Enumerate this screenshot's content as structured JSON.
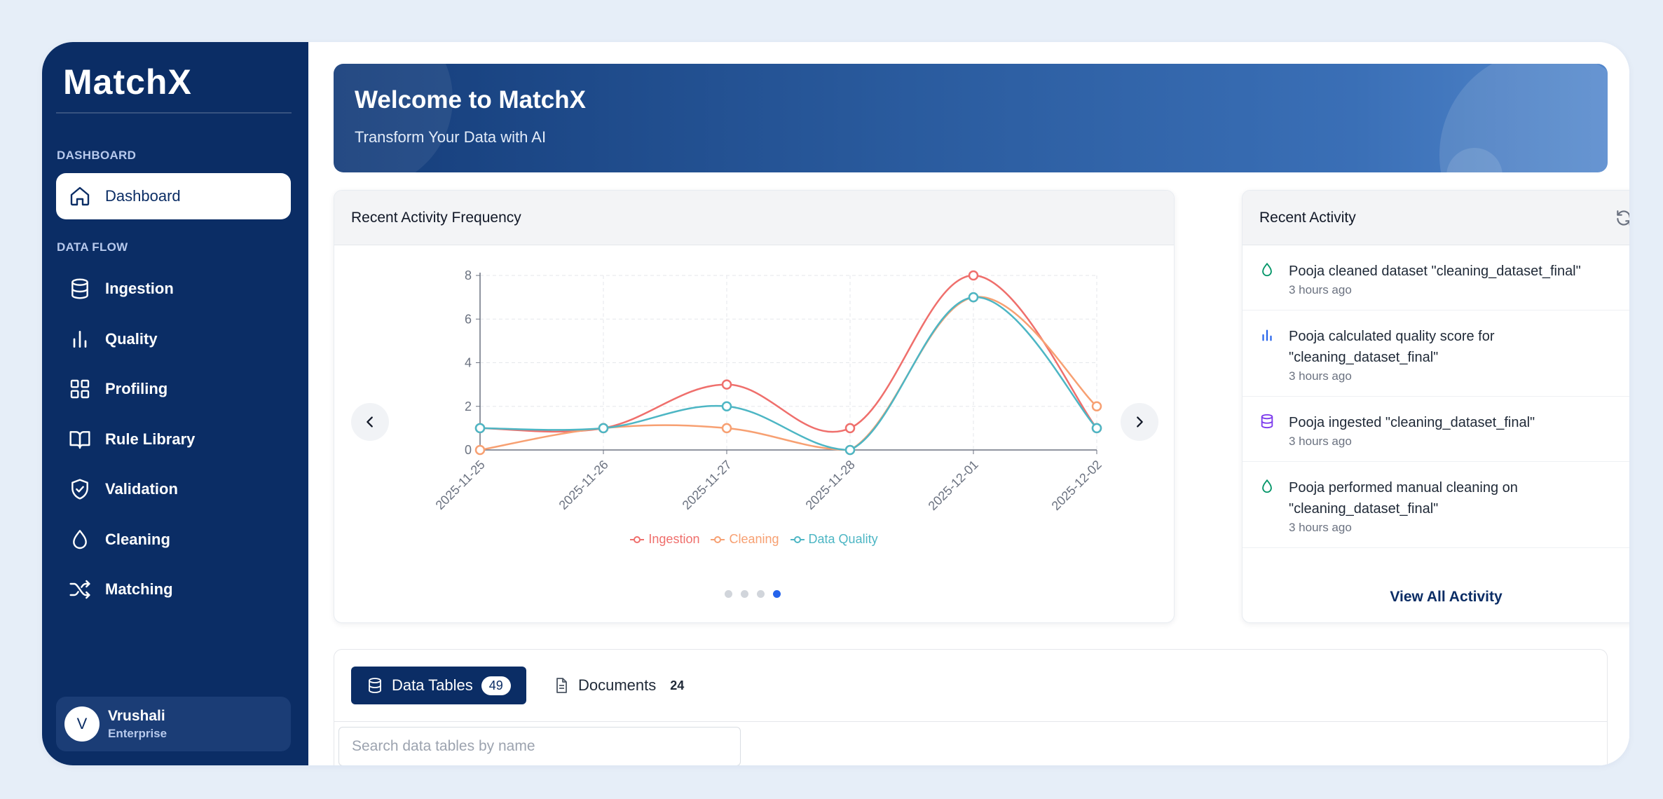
{
  "app": {
    "logo_text": "MatchX"
  },
  "sidebar": {
    "section_dashboard": "DASHBOARD",
    "section_dataflow": "DATA FLOW",
    "items": [
      {
        "label": "Dashboard",
        "icon": "home-icon"
      },
      {
        "label": "Ingestion",
        "icon": "database-icon"
      },
      {
        "label": "Quality",
        "icon": "bar-chart-icon"
      },
      {
        "label": "Profiling",
        "icon": "grid-icon"
      },
      {
        "label": "Rule Library",
        "icon": "book-icon"
      },
      {
        "label": "Validation",
        "icon": "shield-check-icon"
      },
      {
        "label": "Cleaning",
        "icon": "droplet-icon"
      },
      {
        "label": "Matching",
        "icon": "shuffle-icon"
      }
    ],
    "user": {
      "initial": "V",
      "name": "Vrushali",
      "plan": "Enterprise"
    }
  },
  "banner": {
    "title": "Welcome to MatchX",
    "subtitle": "Transform Your Data with AI"
  },
  "chart_card": {
    "title": "Recent Activity Frequency",
    "active_slide": 4,
    "slide_count": 4
  },
  "chart_data": {
    "type": "line",
    "categories": [
      "2025-11-25",
      "2025-11-26",
      "2025-11-27",
      "2025-11-28",
      "2025-12-01",
      "2025-12-02"
    ],
    "series": [
      {
        "name": "Ingestion",
        "color": "#ef6f6c",
        "values": [
          1,
          1,
          3,
          1,
          8,
          1
        ]
      },
      {
        "name": "Cleaning",
        "color": "#f7a072",
        "values": [
          0,
          1,
          1,
          0,
          7,
          2
        ]
      },
      {
        "name": "Data Quality",
        "color": "#4db6c4",
        "values": [
          1,
          1,
          2,
          0,
          7,
          1
        ]
      }
    ],
    "ylim": [
      0,
      8
    ],
    "yticks": [
      0,
      2,
      4,
      6,
      8
    ],
    "grid": true,
    "legend": "bottom"
  },
  "activity": {
    "title": "Recent Activity",
    "items": [
      {
        "icon": "droplet-icon",
        "color": "#059669",
        "text": "Pooja cleaned dataset \"cleaning_dataset_final\"",
        "time": "3 hours ago"
      },
      {
        "icon": "bar-chart-icon",
        "color": "#2563eb",
        "text": "Pooja calculated quality score for \"cleaning_dataset_final\"",
        "time": "3 hours ago"
      },
      {
        "icon": "database-icon",
        "color": "#7c3aed",
        "text": "Pooja ingested \"cleaning_dataset_final\"",
        "time": "3 hours ago"
      },
      {
        "icon": "droplet-icon",
        "color": "#059669",
        "text": "Pooja performed manual cleaning on \"cleaning_dataset_final\"",
        "time": "3 hours ago"
      }
    ],
    "view_all": "View All Activity"
  },
  "tables": {
    "tabs": [
      {
        "label": "Data Tables",
        "count": "49"
      },
      {
        "label": "Documents",
        "count": "24"
      }
    ],
    "search_placeholder": "Search data tables by name"
  }
}
